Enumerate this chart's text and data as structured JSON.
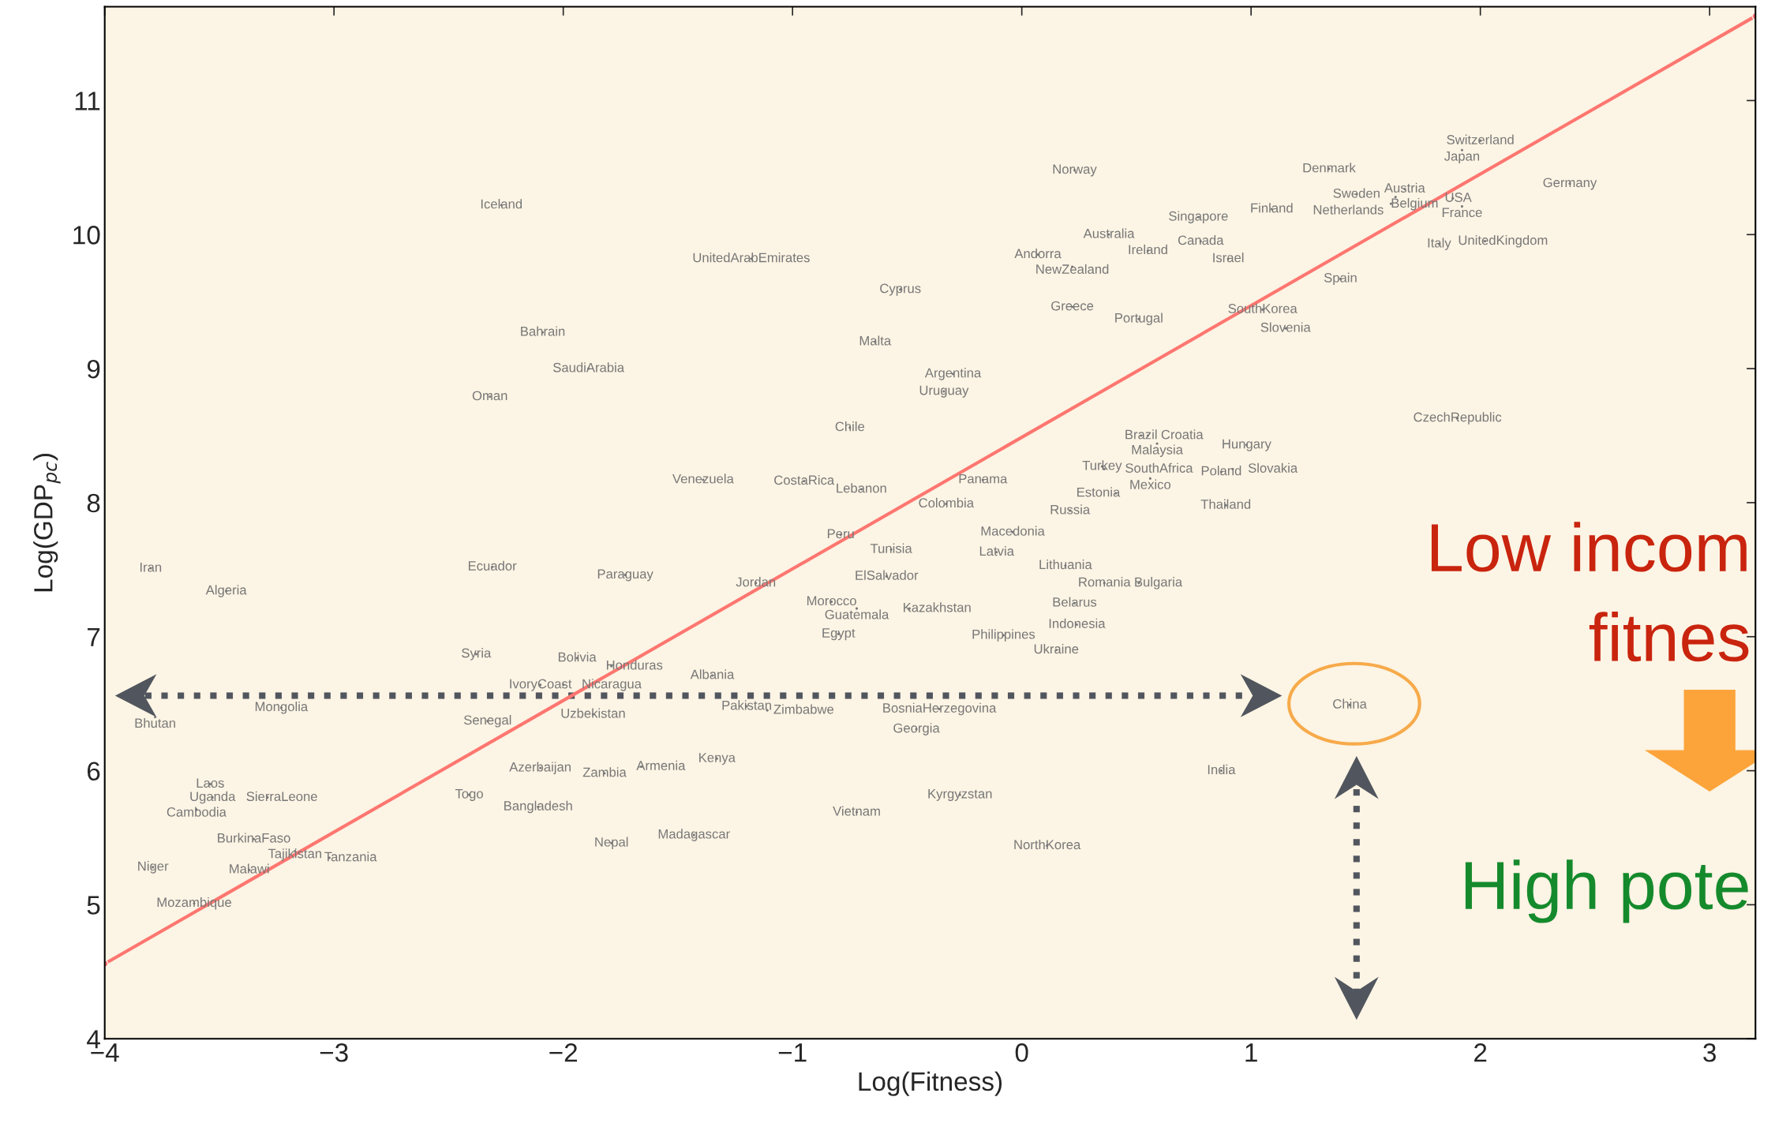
{
  "chart_data": {
    "type": "scatter",
    "xlabel": "Log(Fitness)",
    "ylabel": "Log(GDP$_{pc}$)",
    "xlim": [
      -4,
      3.2
    ],
    "ylim": [
      4,
      11.7
    ],
    "xticks": [
      -4,
      -3,
      -2,
      -1,
      0,
      1,
      2,
      3
    ],
    "yticks": [
      4,
      5,
      6,
      7,
      8,
      9,
      10,
      11
    ],
    "grid": false,
    "marker": "circle",
    "series": [
      {
        "type": "line",
        "color": "#ff7670",
        "x": [
          -4,
          3.2
        ],
        "values": [
          4.56,
          11.63
        ]
      },
      {
        "color": "#777777",
        "x": [
          2.0,
          1.92,
          0.23,
          1.34,
          1.67,
          1.46,
          1.63,
          1.61,
          1.88,
          1.92,
          2.39,
          -2.27,
          0.77,
          1.09,
          0.38,
          0.78,
          0.07,
          0.55,
          0.22,
          0.9,
          -1.18,
          1.82,
          2.02,
          -0.53,
          1.39,
          0.22,
          0.51,
          1.05,
          1.15,
          -2.09,
          -0.64,
          -1.89,
          -0.3,
          -0.34,
          -2.32,
          1.9,
          -0.75,
          0.52,
          0.55,
          0.59,
          0.98,
          0.35,
          0.36,
          0.56,
          0.87,
          0.92,
          0.41,
          0.89,
          0.21,
          -1.39,
          -0.95,
          -0.7,
          -0.17,
          -0.33,
          -0.04,
          -0.11,
          -0.79,
          -0.57,
          0.19,
          0.36,
          0.51,
          -3.8,
          -3.47,
          -2.31,
          -1.73,
          -1.16,
          -0.59,
          -0.83,
          -0.72,
          -0.49,
          0.23,
          0.24,
          -0.8,
          -0.08,
          0.15,
          -2.38,
          -1.94,
          -1.79,
          -2.1,
          -2.0,
          -1.35,
          -3.78,
          -3.23,
          -2.33,
          -1.87,
          -1.2,
          -1.11,
          -0.36,
          -0.46,
          1.43,
          -1.33,
          -2.1,
          -1.82,
          -1.66,
          0.87,
          -3.54,
          -3.53,
          -3.29,
          -3.6,
          -2.41,
          -2.11,
          -0.27,
          -0.72,
          -3.35,
          -3.17,
          -3.02,
          -1.79,
          -1.43,
          0.11,
          -3.79,
          -3.37,
          -3.61
        ],
        "values": [
          10.7,
          10.63,
          10.48,
          10.49,
          10.34,
          10.3,
          10.28,
          10.23,
          10.27,
          10.21,
          10.38,
          10.22,
          10.13,
          10.19,
          10.0,
          9.95,
          9.85,
          9.88,
          9.76,
          9.82,
          9.82,
          9.93,
          9.95,
          9.59,
          9.67,
          9.46,
          9.37,
          9.44,
          9.3,
          9.27,
          9.2,
          9.0,
          8.96,
          8.83,
          8.79,
          8.63,
          8.56,
          8.5,
          8.5,
          8.44,
          8.43,
          8.27,
          8.25,
          8.18,
          8.23,
          8.25,
          8.07,
          7.98,
          7.94,
          8.17,
          8.16,
          8.1,
          8.17,
          7.99,
          7.78,
          7.63,
          7.76,
          7.65,
          7.53,
          7.4,
          7.4,
          7.51,
          7.34,
          7.52,
          7.46,
          7.4,
          7.45,
          7.26,
          7.21,
          7.21,
          7.25,
          7.09,
          7.02,
          7.01,
          6.9,
          6.87,
          6.84,
          6.78,
          6.64,
          6.64,
          6.71,
          6.4,
          6.47,
          6.37,
          6.42,
          6.48,
          6.45,
          6.46,
          6.31,
          6.49,
          6.09,
          6.02,
          5.98,
          6.03,
          6.0,
          5.9,
          5.8,
          5.8,
          5.71,
          5.82,
          5.73,
          5.82,
          5.69,
          5.49,
          5.4,
          5.35,
          5.46,
          5.52,
          5.44,
          5.28,
          5.26,
          5.01
        ],
        "value_labels": [
          "Switzerland",
          "Japan",
          "Norway",
          "Denmark",
          "Austria",
          "Sweden",
          "Belgium",
          "Netherlands",
          "USA",
          "France",
          "Germany",
          "Iceland",
          "Singapore",
          "Finland",
          "Australia",
          "Canada",
          "Andorra",
          "Ireland",
          "NewZealand",
          "Israel",
          "UnitedArabEmirates",
          "Italy",
          "UnitedKingdom",
          "Cyprus",
          "Spain",
          "Greece",
          "Portugal",
          "SouthKorea",
          "Slovenia",
          "Bahrain",
          "Malta",
          "SaudiArabia",
          "Argentina",
          "Uruguay",
          "Oman",
          "CzechRepublic",
          "Chile",
          "Brazil",
          "Croatia",
          "Malaysia",
          "Hungary",
          "Turkey",
          "SouthAfrica",
          "Mexico",
          "Poland",
          "Slovakia",
          "Estonia",
          "Thailand",
          "Russia",
          "Venezuela",
          "CostaRica",
          "Lebanon",
          "Panama",
          "Colombia",
          "Macedonia",
          "Latvia",
          "Peru",
          "Tunisia",
          "Lithuania",
          "Romania",
          "Bulgaria",
          "Iran",
          "Algeria",
          "Ecuador",
          "Paraguay",
          "Jordan",
          "ElSalvador",
          "Morocco",
          "Guatemala",
          "Kazakhstan",
          "Belarus",
          "Indonesia",
          "Egypt",
          "Philippines",
          "Ukraine",
          "Syria",
          "Bolivia",
          "Honduras",
          "IvoryCoast",
          "Nicaragua",
          "Albania",
          "Bhutan",
          "Mongolia",
          "Senegal",
          "Uzbekistan",
          "Pakistan",
          "Zimbabwe",
          "BosniaHerzegovina",
          "Georgia",
          "China",
          "Kenya",
          "Azerbaijan",
          "Zambia",
          "Armenia",
          "India",
          "Laos",
          "Uganda",
          "SierraLeone",
          "Cambodia",
          "Togo",
          "Bangladesh",
          "Kyrgyzstan",
          "Vietnam",
          "BurkinaFaso",
          "Tajikistan",
          "Tanzania",
          "Nepal",
          "Madagascar",
          "NorthKorea",
          "Niger",
          "Malawi",
          "Mozambique"
        ]
      }
    ],
    "annotations": [
      "Low incom",
      "fitnes",
      "High pote"
    ]
  }
}
